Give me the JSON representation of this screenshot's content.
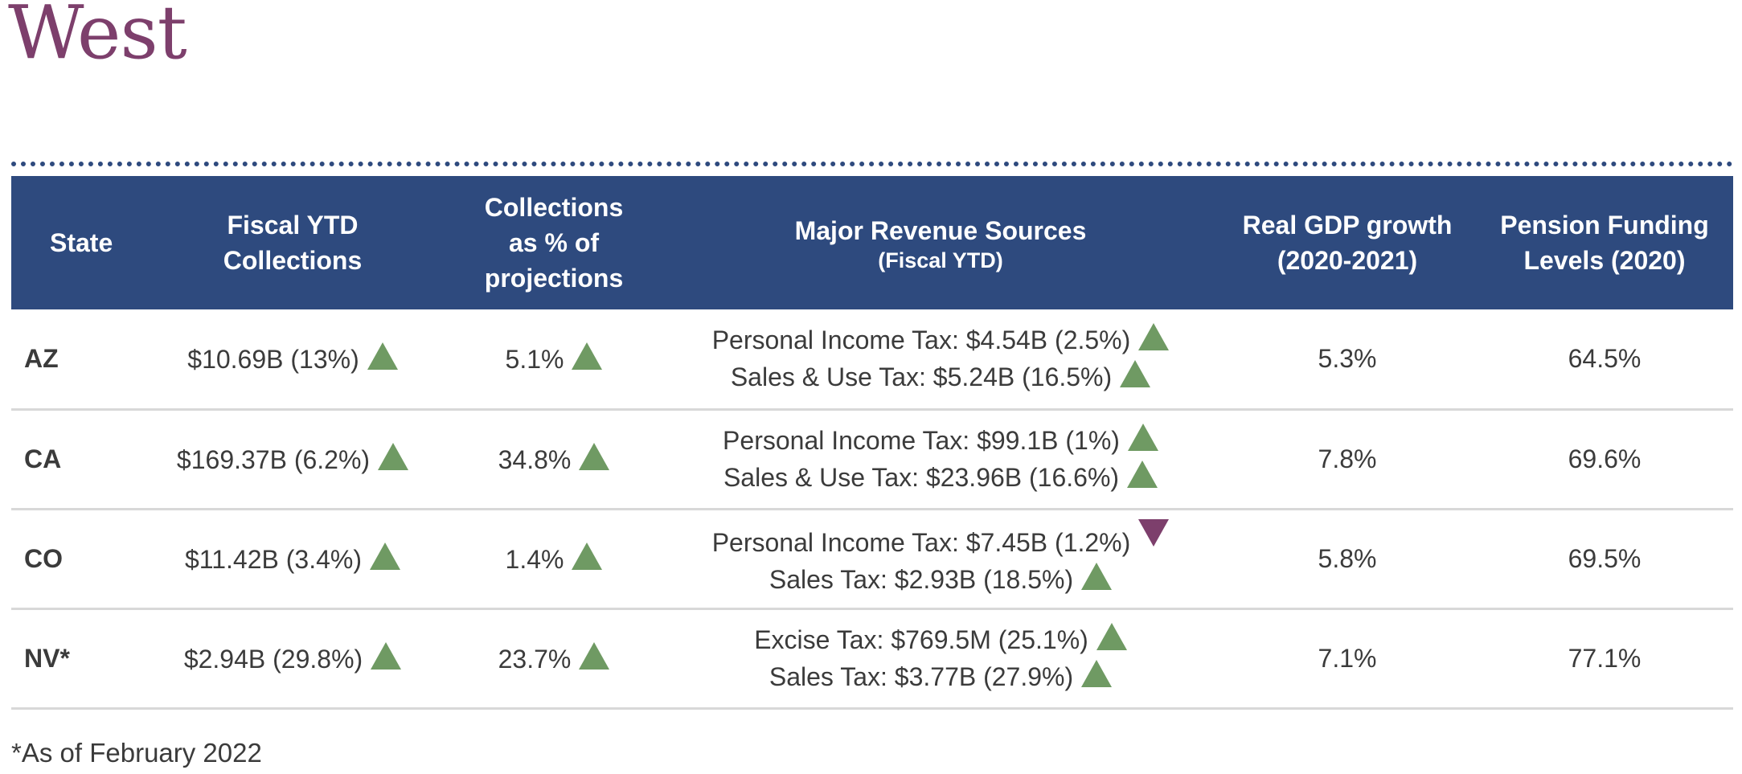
{
  "region": {
    "title": "West"
  },
  "table": {
    "headers": {
      "state": [
        "State"
      ],
      "collections": [
        "Fiscal YTD",
        "Collections"
      ],
      "pct_projection": [
        "Collections",
        "as % of",
        "projections"
      ],
      "revenue_sources": {
        "title": "Major Revenue Sources",
        "subtitle": "(Fiscal YTD)"
      },
      "gdp_growth": [
        "Real GDP growth",
        "(2020-2021)"
      ],
      "pension": [
        "Pension Funding",
        "Levels (2020)"
      ]
    },
    "rows": [
      {
        "state": "AZ",
        "collections": {
          "value": "$10.69B (13%)",
          "trend": "up"
        },
        "pct_projection": {
          "value": "5.1%",
          "trend": "up"
        },
        "sources": [
          {
            "text": "Personal Income Tax: $4.54B (2.5%)",
            "trend": "up"
          },
          {
            "text": "Sales & Use Tax: $5.24B (16.5%)",
            "trend": "up"
          }
        ],
        "gdp_growth": "5.3%",
        "pension": "64.5%"
      },
      {
        "state": "CA",
        "collections": {
          "value": "$169.37B (6.2%)",
          "trend": "up"
        },
        "pct_projection": {
          "value": "34.8%",
          "trend": "up"
        },
        "sources": [
          {
            "text": "Personal Income Tax: $99.1B (1%)",
            "trend": "up"
          },
          {
            "text": "Sales & Use Tax: $23.96B (16.6%)",
            "trend": "up"
          }
        ],
        "gdp_growth": "7.8%",
        "pension": "69.6%"
      },
      {
        "state": "CO",
        "collections": {
          "value": "$11.42B (3.4%)",
          "trend": "up"
        },
        "pct_projection": {
          "value": "1.4%",
          "trend": "up"
        },
        "sources": [
          {
            "text": "Personal Income Tax: $7.45B (1.2%)",
            "trend": "down"
          },
          {
            "text": "Sales Tax: $2.93B (18.5%)",
            "trend": "up"
          }
        ],
        "gdp_growth": "5.8%",
        "pension": "69.5%"
      },
      {
        "state": "NV*",
        "collections": {
          "value": "$2.94B (29.8%)",
          "trend": "up"
        },
        "pct_projection": {
          "value": "23.7%",
          "trend": "up"
        },
        "sources": [
          {
            "text": "Excise Tax: $769.5M (25.1%)",
            "trend": "up"
          },
          {
            "text": "Sales Tax: $3.77B (27.9%)",
            "trend": "up"
          }
        ],
        "gdp_growth": "7.1%",
        "pension": "77.1%"
      }
    ]
  },
  "footnote": "*As of February 2022",
  "colors": {
    "header_bg": "#2e4a7e",
    "title": "#7d3f6c",
    "up_arrow": "#6f9a63",
    "down_arrow": "#7d3f6c"
  }
}
